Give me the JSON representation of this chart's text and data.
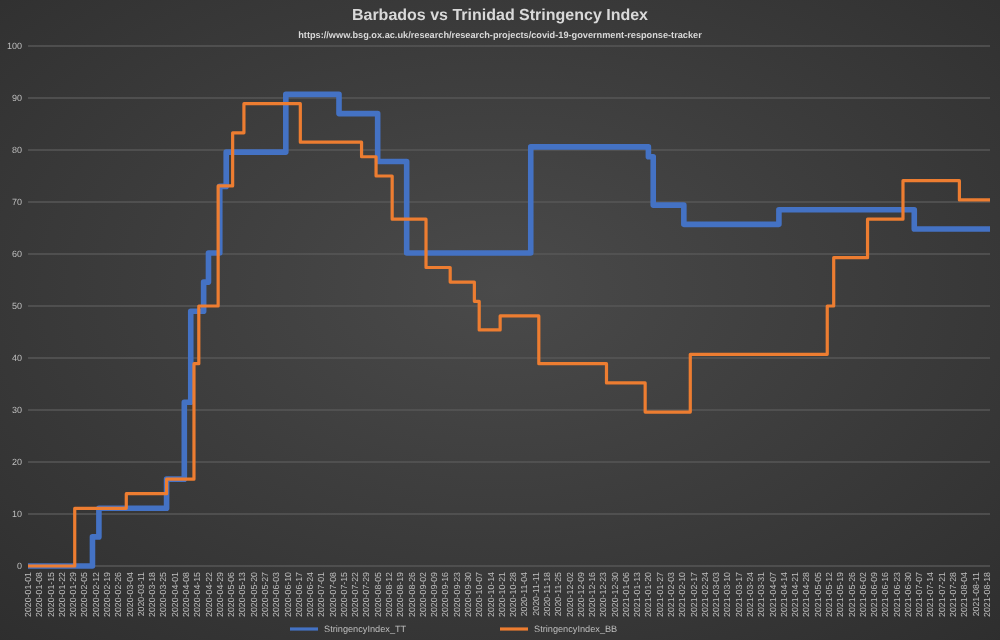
{
  "chart_data": {
    "type": "step",
    "title": "Barbados vs Trinidad Stringency Index",
    "subtitle": "https://www.bsg.ox.ac.uk/research/research-projects/covid-19-government-response-tracker",
    "series": [
      {
        "name": "StringencyIndex_TT",
        "color": "#4472c4",
        "x": [
          "2020-01-01",
          "2020-02-10",
          "2020-02-14",
          "2020-03-27",
          "2020-04-07",
          "2020-04-11",
          "2020-04-19",
          "2020-04-22",
          "2020-04-29",
          "2020-05-03",
          "2020-06-09",
          "2020-07-12",
          "2020-08-05",
          "2020-08-23",
          "2020-11-08",
          "2021-01-20",
          "2021-01-23",
          "2021-02-11",
          "2021-04-11",
          "2021-07-04",
          "2021-08-20"
        ],
        "values": [
          0,
          5.6,
          11.1,
          16.7,
          31.5,
          49,
          54.6,
          60.2,
          73,
          79.6,
          90.7,
          87,
          77.8,
          60.2,
          80.6,
          78.7,
          69.4,
          65.7,
          68.5,
          64.8,
          64.8
        ]
      },
      {
        "name": "StringencyIndex_BB",
        "color": "#ed7d31",
        "x": [
          "2020-01-01",
          "2020-01-30",
          "2020-03-02",
          "2020-03-27",
          "2020-04-13",
          "2020-04-16",
          "2020-04-28",
          "2020-05-07",
          "2020-05-14",
          "2020-06-18",
          "2020-07-26",
          "2020-08-04",
          "2020-08-14",
          "2020-09-04",
          "2020-09-19",
          "2020-10-04",
          "2020-10-07",
          "2020-10-20",
          "2020-11-13",
          "2020-12-25",
          "2021-01-18",
          "2021-02-15",
          "2021-05-11",
          "2021-05-15",
          "2021-06-05",
          "2021-06-27",
          "2021-08-01",
          "2021-08-20"
        ],
        "values": [
          0,
          11.1,
          13.9,
          16.7,
          38.9,
          50,
          73.1,
          83.3,
          88.9,
          81.5,
          78.7,
          75,
          66.7,
          57.4,
          54.6,
          50.9,
          45.4,
          48.1,
          38.9,
          35.2,
          29.6,
          40.7,
          50,
          59.3,
          66.7,
          74.1,
          70.4,
          70.4
        ]
      }
    ],
    "xlim": [
      "2020-01-01",
      "2021-08-20"
    ],
    "xticks": [
      "2020-01-01",
      "2020-01-08",
      "2020-01-15",
      "2020-01-22",
      "2020-01-29",
      "2020-02-05",
      "2020-02-12",
      "2020-02-19",
      "2020-02-26",
      "2020-03-04",
      "2020-03-11",
      "2020-03-18",
      "2020-03-25",
      "2020-04-01",
      "2020-04-08",
      "2020-04-15",
      "2020-04-22",
      "2020-04-29",
      "2020-05-06",
      "2020-05-13",
      "2020-05-20",
      "2020-05-27",
      "2020-06-03",
      "2020-06-10",
      "2020-06-17",
      "2020-06-24",
      "2020-07-01",
      "2020-07-08",
      "2020-07-15",
      "2020-07-22",
      "2020-07-29",
      "2020-08-05",
      "2020-08-12",
      "2020-08-19",
      "2020-08-26",
      "2020-09-02",
      "2020-09-09",
      "2020-09-16",
      "2020-09-23",
      "2020-09-30",
      "2020-10-07",
      "2020-10-14",
      "2020-10-21",
      "2020-10-28",
      "2020-11-04",
      "2020-11-11",
      "2020-11-18",
      "2020-11-25",
      "2020-12-02",
      "2020-12-09",
      "2020-12-16",
      "2020-12-23",
      "2020-12-30",
      "2021-01-06",
      "2021-01-13",
      "2021-01-20",
      "2021-01-27",
      "2021-02-03",
      "2021-02-10",
      "2021-02-17",
      "2021-02-24",
      "2021-03-03",
      "2021-03-10",
      "2021-03-17",
      "2021-03-24",
      "2021-03-31",
      "2021-04-07",
      "2021-04-14",
      "2021-04-21",
      "2021-04-28",
      "2021-05-05",
      "2021-05-12",
      "2021-05-19",
      "2021-05-26",
      "2021-06-02",
      "2021-06-09",
      "2021-06-16",
      "2021-06-23",
      "2021-06-30",
      "2021-07-07",
      "2021-07-14",
      "2021-07-21",
      "2021-07-28",
      "2021-08-04",
      "2021-08-11",
      "2021-08-18"
    ],
    "ylim": [
      0,
      100
    ],
    "yticks": [
      0,
      10,
      20,
      30,
      40,
      50,
      60,
      70,
      80,
      90,
      100
    ],
    "grid": "y",
    "legend": "bottom",
    "line_style": "solid",
    "marker": "none"
  }
}
